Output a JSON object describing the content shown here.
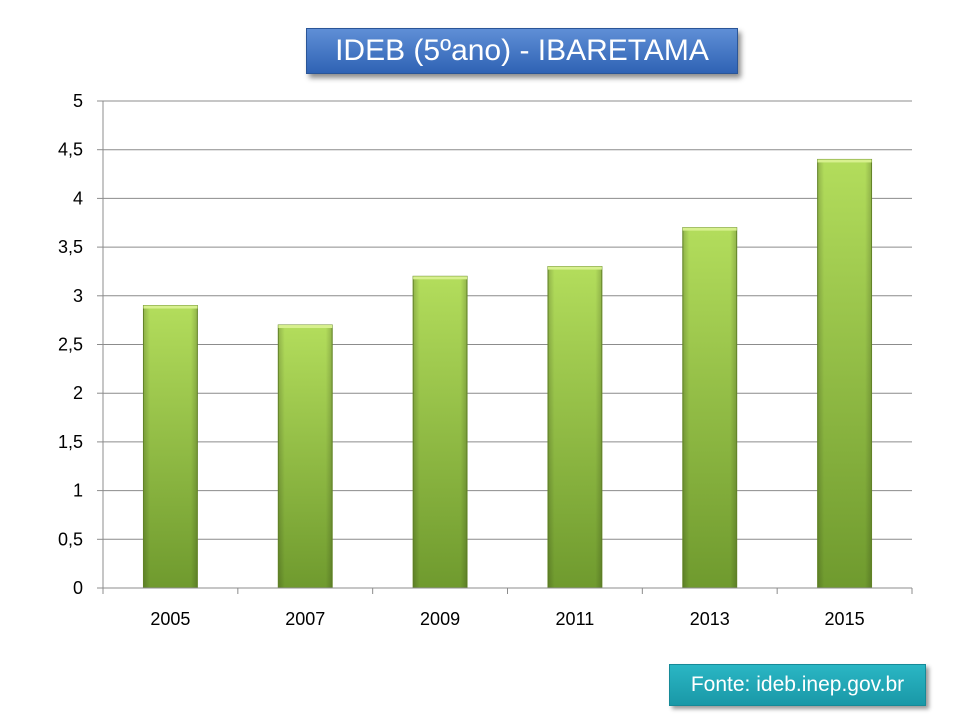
{
  "title": "IDEB (5ºano) - IBARETAMA",
  "source": "Fonte: ideb.inep.gov.br",
  "colors": {
    "bar_top": "#b3dd5c",
    "bar_bottom": "#6f9a2e",
    "title_bg": "#3d70c0",
    "source_bg": "#22a8b6"
  },
  "chart_data": {
    "type": "bar",
    "title": "IDEB (5ºano) - IBARETAMA",
    "categories": [
      "2005",
      "2007",
      "2009",
      "2011",
      "2013",
      "2015"
    ],
    "values": [
      2.9,
      2.7,
      3.2,
      3.3,
      3.7,
      4.4
    ],
    "ylim": [
      0,
      5
    ],
    "yticks": [
      "0",
      "0,5",
      "1",
      "1,5",
      "2",
      "2,5",
      "3",
      "3,5",
      "4",
      "4,5",
      "5"
    ],
    "xlabel": "",
    "ylabel": "",
    "grid": true,
    "legend": "none"
  }
}
